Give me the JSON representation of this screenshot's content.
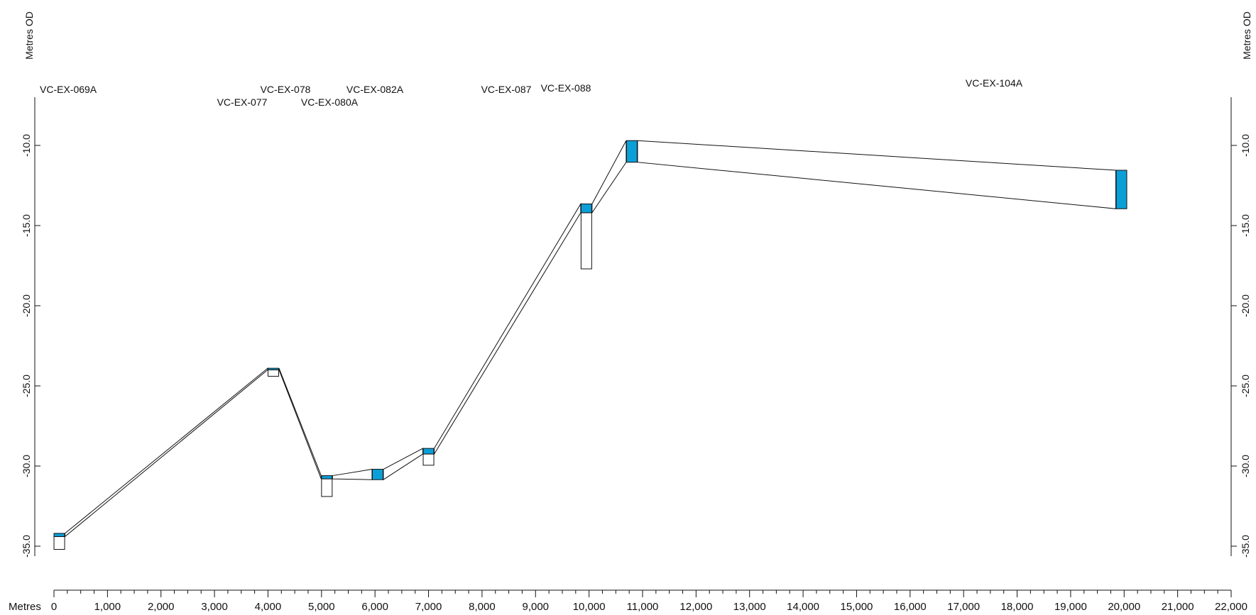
{
  "chart_data": {
    "type": "line",
    "left_axis_label": "Metres OD",
    "right_axis_label": "Metres OD",
    "x_axis_label": "Metres",
    "xlim": [
      0,
      22000
    ],
    "ylim": [
      -36.5,
      -7.0
    ],
    "y_ticks": [
      -10.0,
      -15.0,
      -20.0,
      -25.0,
      -30.0,
      -35.0
    ],
    "y_tick_labels": [
      "-10.0",
      "-15.0",
      "-20.0",
      "-25.0",
      "-30.0",
      "-35.0"
    ],
    "x_ticks": [
      0,
      1000,
      2000,
      3000,
      4000,
      5000,
      6000,
      7000,
      8000,
      9000,
      10000,
      11000,
      12000,
      13000,
      14000,
      15000,
      16000,
      17000,
      18000,
      19000,
      20000,
      21000,
      22000
    ],
    "x_tick_labels": [
      "0",
      "1,000",
      "2,000",
      "3,000",
      "4,000",
      "5,000",
      "6,000",
      "7,000",
      "8,000",
      "9,000",
      "10,000",
      "11,000",
      "12,000",
      "13,000",
      "14,000",
      "15,000",
      "16,000",
      "17,000",
      "18,000",
      "19,000",
      "20,000",
      "21,000",
      "22,000"
    ],
    "unit_color": "#0b9fd8",
    "cores": [
      {
        "name": "VC-EX-069A",
        "x": 100,
        "unit_top": -34.2,
        "unit_base": -34.4,
        "core_base": -35.2
      },
      {
        "name": "VC-EX-077",
        "x": 4100,
        "unit_top": -23.9,
        "unit_base": -24.0,
        "core_base": -24.4
      },
      {
        "name": "VC-EX-078",
        "x": 5100,
        "unit_top": -30.6,
        "unit_base": -30.8,
        "core_base": -31.9
      },
      {
        "name": "VC-EX-080A",
        "x": 6050,
        "unit_top": -30.2,
        "unit_base": -30.85,
        "core_base": -30.85
      },
      {
        "name": "VC-EX-082A",
        "x": 7000,
        "unit_top": -28.9,
        "unit_base": -29.25,
        "core_base": -29.95
      },
      {
        "name": "VC-EX-087",
        "x": 9950,
        "unit_top": -13.65,
        "unit_base": -14.2,
        "core_base": -17.7
      },
      {
        "name": "VC-EX-088",
        "x": 10800,
        "unit_top": -9.7,
        "unit_base": -11.05,
        "core_base": -11.05
      },
      {
        "name": "VC-EX-104A",
        "x": 19950,
        "unit_top": -11.55,
        "unit_base": -13.95,
        "core_base": -13.95
      }
    ]
  }
}
